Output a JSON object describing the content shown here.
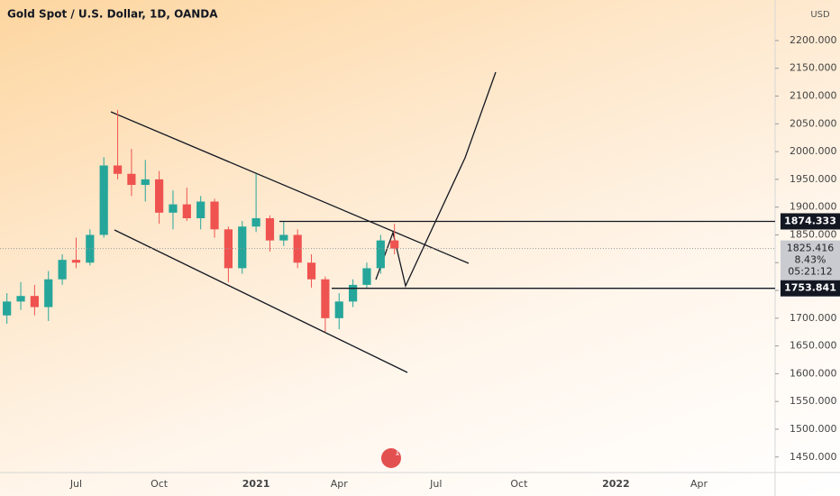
{
  "chart_data": {
    "type": "candlestick",
    "title": "Gold Spot / U.S. Dollar, 1D, OANDA",
    "currency": "USD",
    "categories": [
      null,
      null,
      null,
      null,
      null,
      "Jul",
      null,
      null,
      null,
      null,
      null,
      "Oct",
      null,
      null,
      null,
      null,
      null,
      null,
      "2021",
      null,
      null,
      null,
      null,
      null,
      "Apr",
      null,
      null,
      null,
      null,
      null,
      null,
      "Jul",
      null,
      null,
      null,
      null,
      null,
      "Oct",
      null,
      null,
      null,
      null,
      null,
      null,
      "2022",
      null,
      null,
      null,
      null,
      null,
      "Apr",
      null,
      null,
      null,
      null,
      null
    ],
    "open": [
      1705,
      1730,
      1740,
      1720,
      1770,
      1805,
      1800,
      1850,
      1975,
      1960,
      1940,
      1950,
      1890,
      1905,
      1880,
      1910,
      1860,
      1790,
      1865,
      1880,
      1840,
      1850,
      1800,
      1770,
      1700,
      1730,
      1760,
      1790,
      1840,
      null,
      null,
      null,
      null,
      null,
      null,
      null,
      null,
      null,
      null,
      null,
      null,
      null,
      null,
      null,
      null,
      null,
      null,
      null,
      null,
      null,
      null,
      null,
      null,
      null,
      null,
      null
    ],
    "high": [
      1745,
      1765,
      1760,
      1785,
      1815,
      1845,
      1860,
      1990,
      2075,
      2005,
      1985,
      1965,
      1930,
      1935,
      1920,
      1915,
      1865,
      1875,
      1960,
      1885,
      1875,
      1860,
      1815,
      1775,
      1745,
      1770,
      1800,
      1850,
      1870,
      null,
      null,
      null,
      null,
      null,
      null,
      null,
      null,
      null,
      null,
      null,
      null,
      null,
      null,
      null,
      null,
      null,
      null,
      null,
      null,
      null,
      null,
      null,
      null,
      null,
      null,
      null
    ],
    "low": [
      1690,
      1715,
      1705,
      1695,
      1760,
      1790,
      1795,
      1845,
      1950,
      1920,
      1910,
      1870,
      1860,
      1875,
      1860,
      1845,
      1765,
      1780,
      1855,
      1820,
      1830,
      1790,
      1755,
      1675,
      1680,
      1720,
      1755,
      1780,
      1815,
      null,
      null,
      null,
      null,
      null,
      null,
      null,
      null,
      null,
      null,
      null,
      null,
      null,
      null,
      null,
      null,
      null,
      null,
      null,
      null,
      null,
      null,
      null,
      null,
      null,
      null,
      null
    ],
    "close": [
      1730,
      1740,
      1720,
      1770,
      1805,
      1800,
      1850,
      1975,
      1960,
      1940,
      1950,
      1890,
      1905,
      1880,
      1910,
      1860,
      1790,
      1865,
      1880,
      1840,
      1850,
      1800,
      1770,
      1700,
      1730,
      1760,
      1790,
      1840,
      1825.416,
      null,
      null,
      null,
      null,
      null,
      null,
      null,
      null,
      null,
      null,
      null,
      null,
      null,
      null,
      null,
      null,
      null,
      null,
      null,
      null,
      null,
      null,
      null,
      null,
      null,
      null,
      null
    ],
    "up_color": "#26a69a",
    "down_color": "#ef5350",
    "ylim": [
      1422,
      2273
    ],
    "yticks": [
      {
        "value": 1450,
        "label": "1450.000"
      },
      {
        "value": 1500,
        "label": "1500.000"
      },
      {
        "value": 1550,
        "label": "1550.000"
      },
      {
        "value": 1600,
        "label": "1600.000"
      },
      {
        "value": 1650,
        "label": "1650.000"
      },
      {
        "value": 1700,
        "label": "1700.000"
      },
      {
        "value": 1750,
        "label": "1750.000"
      },
      {
        "value": 1800,
        "label": "1800.000"
      },
      {
        "value": 1850,
        "label": "1850.000"
      },
      {
        "value": 1900,
        "label": "1900.000"
      },
      {
        "value": 1950,
        "label": "1950.000"
      },
      {
        "value": 2000,
        "label": "2000.000"
      },
      {
        "value": 2050,
        "label": "2050.000"
      },
      {
        "value": 2100,
        "label": "2100.000"
      },
      {
        "value": 2150,
        "label": "2150.000"
      },
      {
        "value": 2200,
        "label": "2200.000"
      }
    ],
    "levels": [
      1874.333,
      1753.841
    ],
    "last_price": 1825.416,
    "change": "8.43%",
    "countdown": "05:21:12",
    "badge": "10"
  }
}
